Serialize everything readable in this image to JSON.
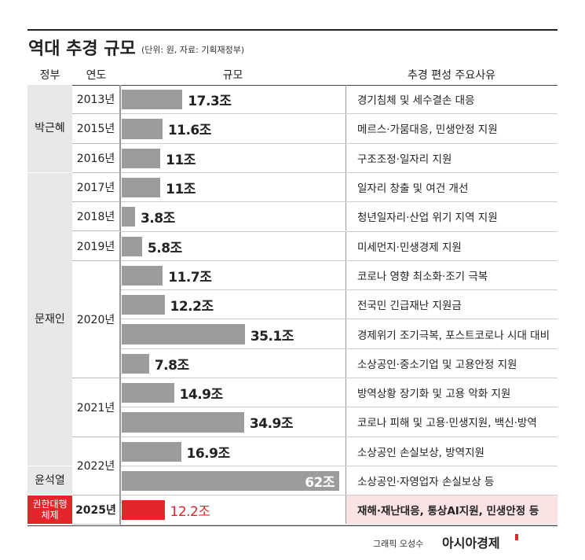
{
  "header": {
    "title": "역대 추경 규모",
    "unit": "(단위: 원, 자료: 기획재정부)"
  },
  "table": {
    "columns": [
      "정부",
      "연도",
      "규모",
      "추경 편성 주요사유"
    ],
    "rows": [
      {
        "government": "박근혜",
        "year": "2013년",
        "value": 17.3,
        "label": "17.3조",
        "reason": "경기침체 및 세수결손 대응"
      },
      {
        "government": null,
        "year": "2015년",
        "value": 11.6,
        "label": "11.6조",
        "reason": "메르스·가뭄대응, 민생안정 지원"
      },
      {
        "government": null,
        "year": "2016년",
        "value": 11,
        "label": "11조",
        "reason": "구조조정·일자리 지원"
      },
      {
        "government": "문재인",
        "year": "2017년",
        "value": 11,
        "label": "11조",
        "reason": "일자리 창출 및 여건 개선"
      },
      {
        "government": null,
        "year": "2018년",
        "value": 3.8,
        "label": "3.8조",
        "reason": "청년일자리·산업 위기 지역 지원"
      },
      {
        "government": null,
        "year": "2019년",
        "value": 5.8,
        "label": "5.8조",
        "reason": "미세먼지·민생경제 지원"
      },
      {
        "government": null,
        "year": "2020년",
        "value": 11.7,
        "label": "11.7조",
        "reason": "코로나 영향 최소화·조기 극복"
      },
      {
        "government": null,
        "year": null,
        "value": 12.2,
        "label": "12.2조",
        "reason": "전국민 긴급재난 지원금"
      },
      {
        "government": null,
        "year": null,
        "value": 35.1,
        "label": "35.1조",
        "reason": "경제위기 조기극복, 포스트코로나 시대 대비"
      },
      {
        "government": null,
        "year": null,
        "value": 7.8,
        "label": "7.8조",
        "reason": "소상공인·중소기업 및 고용안정 지원"
      },
      {
        "government": null,
        "year": "2021년",
        "value": 14.9,
        "label": "14.9조",
        "reason": "방역상황 장기화 및 고용 악화 지원"
      },
      {
        "government": null,
        "year": null,
        "value": 34.9,
        "label": "34.9조",
        "reason": "코로나 피해 및 고용·민생지원, 백신·방역"
      },
      {
        "government": null,
        "year": "2022년",
        "value": 16.9,
        "label": "16.9조",
        "reason": "소상공인 손실보상, 방역지원"
      },
      {
        "government": "윤석열",
        "year": null,
        "value": 62,
        "label": "62조",
        "reason": "소상공인·자영업자 손실보상 등"
      },
      {
        "government": "권한대행 체제",
        "year": "2025년",
        "value": 12.2,
        "label": "12.2조",
        "reason": "재해·재난대응, 통상AI지원, 민생안정 등",
        "highlight": true
      }
    ]
  },
  "credit": {
    "author": "그래픽 오성수",
    "brand": "아시아경제"
  }
}
